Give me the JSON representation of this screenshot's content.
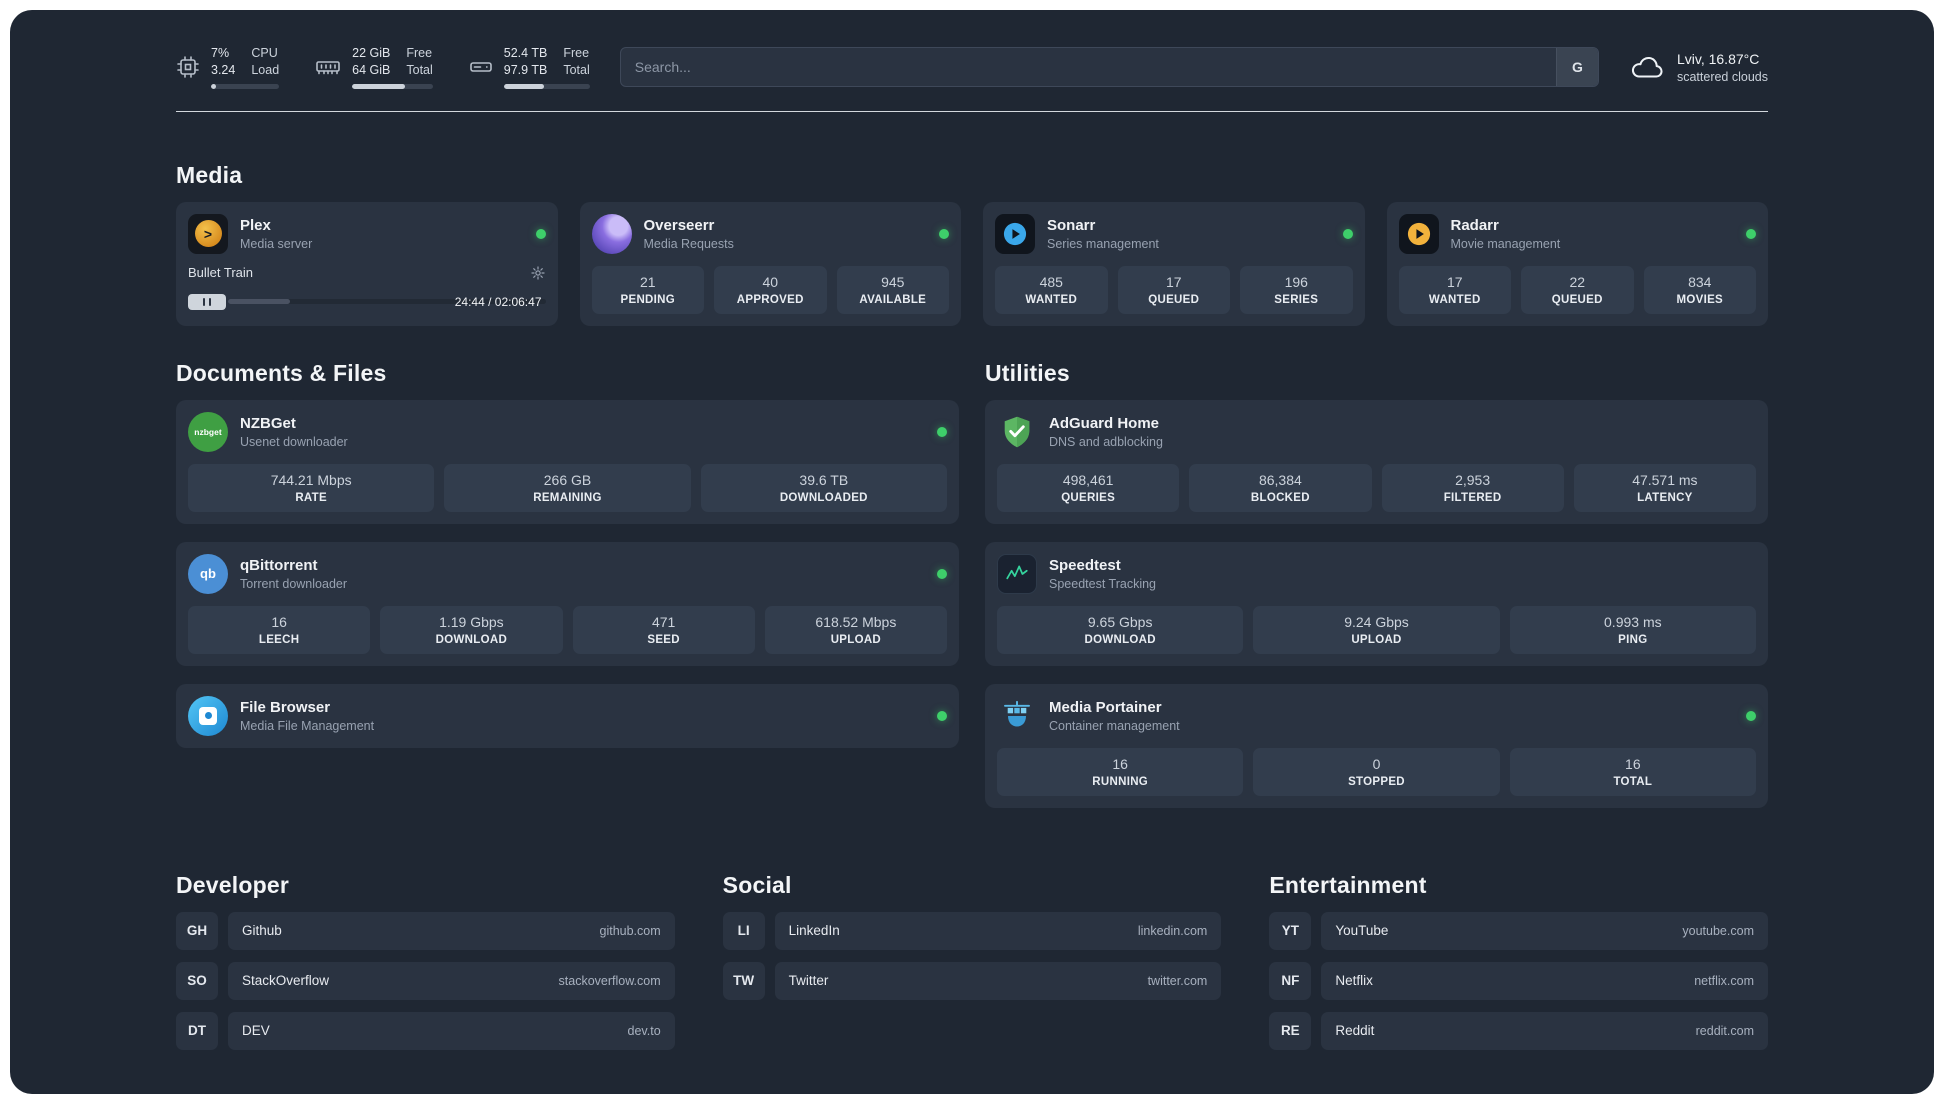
{
  "topbar": {
    "cpu": {
      "value_top": "7%",
      "value_bottom": "3.24",
      "label_top": "CPU",
      "label_bottom": "Load",
      "bar_percent": 7
    },
    "ram": {
      "value_top": "22 GiB",
      "value_bottom": "64 GiB",
      "label_top": "Free",
      "label_bottom": "Total",
      "bar_percent": 66
    },
    "disk": {
      "value_top": "52.4 TB",
      "value_bottom": "97.9 TB",
      "label_top": "Free",
      "label_bottom": "Total",
      "bar_percent": 47
    },
    "search": {
      "placeholder": "Search...",
      "engine_label": "G"
    },
    "weather": {
      "location": "Lviv, 16.87°C",
      "condition": "scattered clouds"
    }
  },
  "media": {
    "title": "Media",
    "plex": {
      "name": "Plex",
      "subtitle": "Media server",
      "now_playing": "Bullet Train",
      "time": "24:44 / 02:06:47",
      "progress_percent": 19.5
    },
    "overseerr": {
      "name": "Overseerr",
      "subtitle": "Media Requests",
      "stats": [
        {
          "value": "21",
          "label": "PENDING"
        },
        {
          "value": "40",
          "label": "APPROVED"
        },
        {
          "value": "945",
          "label": "AVAILABLE"
        }
      ]
    },
    "sonarr": {
      "name": "Sonarr",
      "subtitle": "Series management",
      "stats": [
        {
          "value": "485",
          "label": "WANTED"
        },
        {
          "value": "17",
          "label": "QUEUED"
        },
        {
          "value": "196",
          "label": "SERIES"
        }
      ]
    },
    "radarr": {
      "name": "Radarr",
      "subtitle": "Movie management",
      "stats": [
        {
          "value": "17",
          "label": "WANTED"
        },
        {
          "value": "22",
          "label": "QUEUED"
        },
        {
          "value": "834",
          "label": "MOVIES"
        }
      ]
    }
  },
  "documents": {
    "title": "Documents & Files",
    "nzbget": {
      "name": "NZBGet",
      "subtitle": "Usenet downloader",
      "icon_text": "nzbget",
      "stats": [
        {
          "value": "744.21 Mbps",
          "label": "RATE"
        },
        {
          "value": "266 GB",
          "label": "REMAINING"
        },
        {
          "value": "39.6 TB",
          "label": "DOWNLOADED"
        }
      ]
    },
    "qbittorrent": {
      "name": "qBittorrent",
      "subtitle": "Torrent downloader",
      "icon_text": "qb",
      "stats": [
        {
          "value": "16",
          "label": "LEECH"
        },
        {
          "value": "1.19 Gbps",
          "label": "DOWNLOAD"
        },
        {
          "value": "471",
          "label": "SEED"
        },
        {
          "value": "618.52 Mbps",
          "label": "UPLOAD"
        }
      ]
    },
    "filebrowser": {
      "name": "File Browser",
      "subtitle": "Media File Management"
    }
  },
  "utilities": {
    "title": "Utilities",
    "adguard": {
      "name": "AdGuard Home",
      "subtitle": "DNS and adblocking",
      "stats": [
        {
          "value": "498,461",
          "label": "QUERIES"
        },
        {
          "value": "86,384",
          "label": "BLOCKED"
        },
        {
          "value": "2,953",
          "label": "FILTERED"
        },
        {
          "value": "47.571 ms",
          "label": "LATENCY"
        }
      ]
    },
    "speedtest": {
      "name": "Speedtest",
      "subtitle": "Speedtest Tracking",
      "stats": [
        {
          "value": "9.65 Gbps",
          "label": "DOWNLOAD"
        },
        {
          "value": "9.24 Gbps",
          "label": "UPLOAD"
        },
        {
          "value": "0.993 ms",
          "label": "PING"
        }
      ]
    },
    "portainer": {
      "name": "Media Portainer",
      "subtitle": "Container management",
      "stats": [
        {
          "value": "16",
          "label": "RUNNING"
        },
        {
          "value": "0",
          "label": "STOPPED"
        },
        {
          "value": "16",
          "label": "TOTAL"
        }
      ]
    }
  },
  "bookmarks": [
    {
      "title": "Developer",
      "items": [
        {
          "abbr": "GH",
          "name": "Github",
          "url": "github.com"
        },
        {
          "abbr": "SO",
          "name": "StackOverflow",
          "url": "stackoverflow.com"
        },
        {
          "abbr": "DT",
          "name": "DEV",
          "url": "dev.to"
        }
      ]
    },
    {
      "title": "Social",
      "items": [
        {
          "abbr": "LI",
          "name": "LinkedIn",
          "url": "linkedin.com"
        },
        {
          "abbr": "TW",
          "name": "Twitter",
          "url": "twitter.com"
        }
      ]
    },
    {
      "title": "Entertainment",
      "items": [
        {
          "abbr": "YT",
          "name": "YouTube",
          "url": "youtube.com"
        },
        {
          "abbr": "NF",
          "name": "Netflix",
          "url": "netflix.com"
        },
        {
          "abbr": "RE",
          "name": "Reddit",
          "url": "reddit.com"
        }
      ]
    }
  ],
  "colors": {
    "status_green": "#3ecf6a",
    "plex_gold": "#e5a00d",
    "sonarr_blue": "#3aa7ea",
    "radarr_gold": "#f2b23c",
    "adguard_green": "#5cb663",
    "background": "#1f2733",
    "card": "#2a3341"
  }
}
